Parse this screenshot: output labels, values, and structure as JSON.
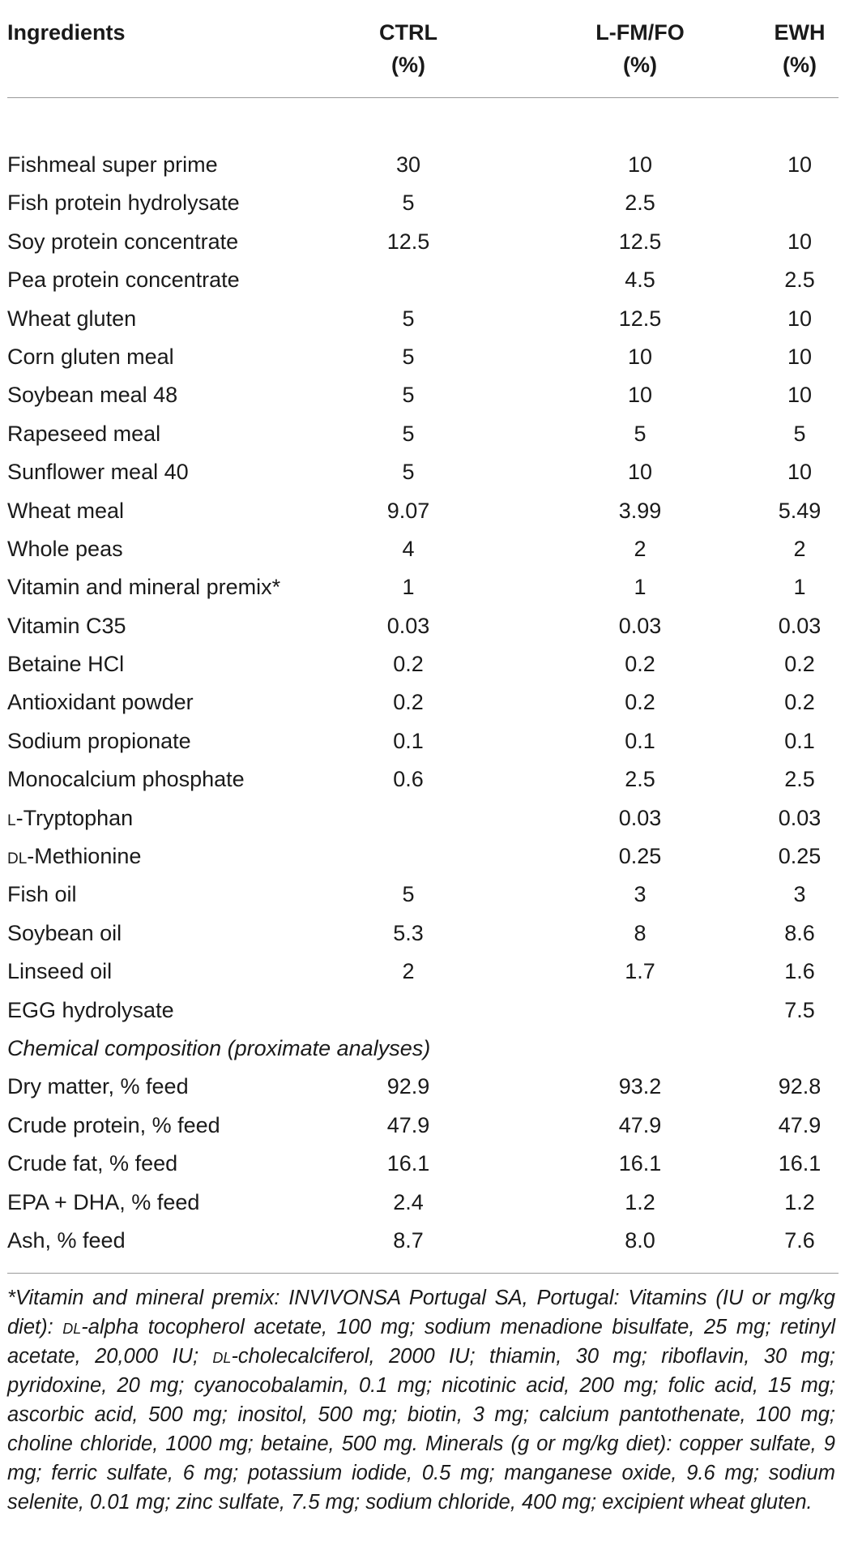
{
  "header": {
    "ingredients": "Ingredients",
    "columns": [
      {
        "line1": "CTRL",
        "line2": "(%)"
      },
      {
        "line1": "L-FM/FO",
        "line2": "(%)"
      },
      {
        "line1": "EWH",
        "line2": "(%)"
      }
    ]
  },
  "rows": [
    {
      "label": "Fishmeal super prime",
      "ctrl": "30",
      "lfm": "10",
      "ewh": "10"
    },
    {
      "label": "Fish protein hydrolysate",
      "ctrl": "5",
      "lfm": "2.5",
      "ewh": ""
    },
    {
      "label": "Soy protein concentrate",
      "ctrl": "12.5",
      "lfm": "12.5",
      "ewh": "10"
    },
    {
      "label": "Pea protein concentrate",
      "ctrl": "",
      "lfm": "4.5",
      "ewh": "2.5"
    },
    {
      "label": "Wheat gluten",
      "ctrl": "5",
      "lfm": "12.5",
      "ewh": "10"
    },
    {
      "label": "Corn gluten meal",
      "ctrl": "5",
      "lfm": "10",
      "ewh": "10"
    },
    {
      "label": "Soybean meal 48",
      "ctrl": "5",
      "lfm": "10",
      "ewh": "10"
    },
    {
      "label": "Rapeseed meal",
      "ctrl": "5",
      "lfm": "5",
      "ewh": "5"
    },
    {
      "label": "Sunflower meal 40",
      "ctrl": "5",
      "lfm": "10",
      "ewh": "10"
    },
    {
      "label": "Wheat meal",
      "ctrl": "9.07",
      "lfm": "3.99",
      "ewh": "5.49"
    },
    {
      "label": "Whole peas",
      "ctrl": "4",
      "lfm": "2",
      "ewh": "2"
    },
    {
      "label": "Vitamin and mineral premix*",
      "ctrl": "1",
      "lfm": "1",
      "ewh": "1"
    },
    {
      "label": "Vitamin C35",
      "ctrl": "0.03",
      "lfm": "0.03",
      "ewh": "0.03"
    },
    {
      "label": "Betaine HCl",
      "ctrl": "0.2",
      "lfm": "0.2",
      "ewh": "0.2"
    },
    {
      "label": "Antioxidant powder",
      "ctrl": "0.2",
      "lfm": "0.2",
      "ewh": "0.2"
    },
    {
      "label": "Sodium propionate",
      "ctrl": "0.1",
      "lfm": "0.1",
      "ewh": "0.1"
    },
    {
      "label": "Monocalcium phosphate",
      "ctrl": "0.6",
      "lfm": "2.5",
      "ewh": "2.5"
    },
    {
      "label_prefix": "l",
      "label_rest": "-Tryptophan",
      "ctrl": "",
      "lfm": "0.03",
      "ewh": "0.03"
    },
    {
      "label_prefix": "dl",
      "label_rest": "-Methionine",
      "ctrl": "",
      "lfm": "0.25",
      "ewh": "0.25"
    },
    {
      "label": "Fish oil",
      "ctrl": "5",
      "lfm": "3",
      "ewh": "3"
    },
    {
      "label": "Soybean oil",
      "ctrl": "5.3",
      "lfm": "8",
      "ewh": "8.6"
    },
    {
      "label": "Linseed oil",
      "ctrl": "2",
      "lfm": "1.7",
      "ewh": "1.6"
    },
    {
      "label": "EGG hydrolysate",
      "ctrl": "",
      "lfm": "",
      "ewh": "7.5"
    },
    {
      "section": "Chemical composition (proximate analyses)"
    },
    {
      "label": "Dry matter, % feed",
      "ctrl": "92.9",
      "lfm": "93.2",
      "ewh": "92.8"
    },
    {
      "label": "Crude protein, % feed",
      "ctrl": "47.9",
      "lfm": "47.9",
      "ewh": "47.9"
    },
    {
      "label": "Crude fat, % feed",
      "ctrl": "16.1",
      "lfm": "16.1",
      "ewh": "16.1"
    },
    {
      "label": "EPA + DHA, % feed",
      "ctrl": "2.4",
      "lfm": "1.2",
      "ewh": "1.2"
    },
    {
      "label": "Ash, % feed",
      "ctrl": "8.7",
      "lfm": "8.0",
      "ewh": "7.6"
    }
  ],
  "footnote": {
    "p1": "*Vitamin and mineral premix: INVIVONSA Portugal SA, Portugal: Vitamins (IU or mg/kg diet): ",
    "sc1": "dl",
    "p2": "-alpha tocopherol acetate, 100 mg; sodium menadione bisulfate, 25 mg; retinyl acetate, 20,000 IU; ",
    "sc2": "dl",
    "p3": "-cholecalciferol, 2000 IU; thiamin, 30 mg; riboflavin, 30 mg; pyridoxine, 20 mg; cyanocobalamin, 0.1 mg; nicotinic acid, 200 mg; folic acid, 15 mg; ascorbic acid, 500 mg; inositol, 500 mg; biotin, 3 mg; calcium pantothenate, 100 mg; choline chloride, 1000 mg; betaine, 500 mg. Minerals (g or mg/kg diet): copper sulfate, 9 mg; ferric sulfate, 6 mg; potassium iodide, 0.5 mg; manganese oxide, 9.6 mg; sodium selenite, 0.01 mg; zinc sulfate, 7.5 mg; sodium chloride, 400 mg; excipient wheat gluten."
  }
}
